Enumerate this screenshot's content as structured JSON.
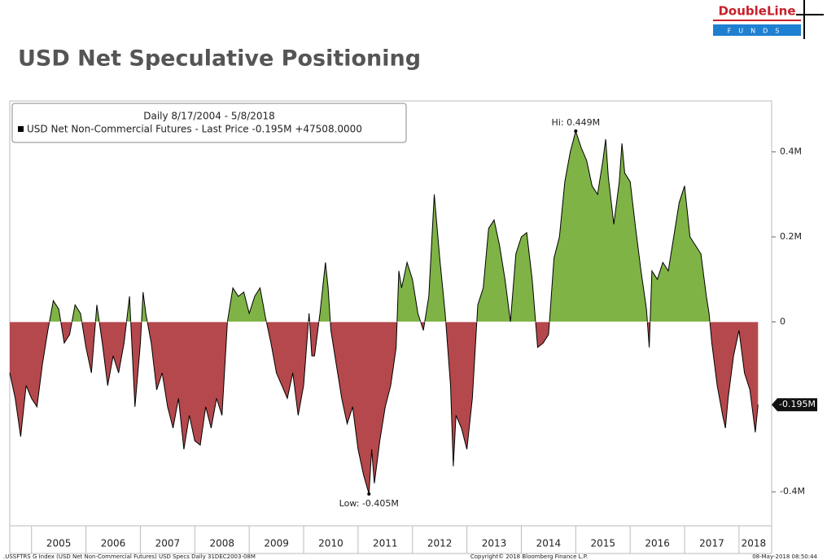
{
  "logo": {
    "name": "DoubleLine",
    "sub": "FUNDS"
  },
  "chart_data": {
    "type": "area",
    "title": "USD Net Speculative Positioning",
    "legend_period": "Daily 8/17/2004 - 5/8/2018",
    "series": [
      {
        "name": "USD Net Non-Commercial Futures - Last Price -0.195M +47508.0000",
        "color": "#000000",
        "positive_color": "#7fb346",
        "negative_color": "#b5484c",
        "x": [
          2004.6,
          2004.7,
          2004.8,
          2004.9,
          2005.0,
          2005.1,
          2005.2,
          2005.3,
          2005.4,
          2005.5,
          2005.6,
          2005.7,
          2005.8,
          2005.9,
          2006.0,
          2006.1,
          2006.2,
          2006.3,
          2006.4,
          2006.5,
          2006.6,
          2006.7,
          2006.8,
          2006.9,
          2007.0,
          2007.05,
          2007.1,
          2007.2,
          2007.3,
          2007.4,
          2007.5,
          2007.6,
          2007.7,
          2007.8,
          2007.9,
          2008.0,
          2008.1,
          2008.2,
          2008.3,
          2008.4,
          2008.5,
          2008.6,
          2008.7,
          2008.8,
          2008.9,
          2009.0,
          2009.1,
          2009.2,
          2009.3,
          2009.4,
          2009.5,
          2009.6,
          2009.7,
          2009.8,
          2009.9,
          2010.0,
          2010.1,
          2010.15,
          2010.2,
          2010.3,
          2010.4,
          2010.45,
          2010.5,
          2010.6,
          2010.7,
          2010.8,
          2010.9,
          2011.0,
          2011.1,
          2011.2,
          2011.25,
          2011.3,
          2011.4,
          2011.5,
          2011.6,
          2011.7,
          2011.75,
          2011.8,
          2011.9,
          2012.0,
          2012.1,
          2012.2,
          2012.3,
          2012.4,
          2012.5,
          2012.6,
          2012.7,
          2012.75,
          2012.8,
          2012.9,
          2013.0,
          2013.1,
          2013.2,
          2013.3,
          2013.4,
          2013.5,
          2013.6,
          2013.7,
          2013.8,
          2013.9,
          2014.0,
          2014.1,
          2014.2,
          2014.3,
          2014.4,
          2014.5,
          2014.6,
          2014.7,
          2014.8,
          2014.9,
          2015.0,
          2015.1,
          2015.2,
          2015.3,
          2015.4,
          2015.5,
          2015.55,
          2015.6,
          2015.7,
          2015.8,
          2015.85,
          2015.9,
          2016.0,
          2016.1,
          2016.2,
          2016.3,
          2016.35,
          2016.4,
          2016.5,
          2016.6,
          2016.7,
          2016.8,
          2016.9,
          2017.0,
          2017.1,
          2017.2,
          2017.3,
          2017.4,
          2017.45,
          2017.5,
          2017.6,
          2017.7,
          2017.75,
          2017.8,
          2017.9,
          2018.0,
          2018.1,
          2018.2,
          2018.3,
          2018.35
        ],
        "values": [
          -0.12,
          -0.18,
          -0.27,
          -0.15,
          -0.18,
          -0.2,
          -0.1,
          -0.02,
          0.05,
          0.03,
          -0.05,
          -0.03,
          0.04,
          0.02,
          -0.06,
          -0.12,
          0.04,
          -0.05,
          -0.15,
          -0.08,
          -0.12,
          -0.05,
          0.06,
          -0.2,
          -0.05,
          0.07,
          0.02,
          -0.05,
          -0.16,
          -0.12,
          -0.2,
          -0.25,
          -0.18,
          -0.3,
          -0.22,
          -0.28,
          -0.29,
          -0.2,
          -0.25,
          -0.18,
          -0.22,
          0.0,
          0.08,
          0.06,
          0.07,
          0.02,
          0.06,
          0.08,
          0.01,
          -0.05,
          -0.12,
          -0.15,
          -0.18,
          -0.12,
          -0.22,
          -0.15,
          0.02,
          -0.08,
          -0.08,
          0.02,
          0.14,
          0.08,
          -0.02,
          -0.1,
          -0.18,
          -0.24,
          -0.2,
          -0.3,
          -0.36,
          -0.405,
          -0.3,
          -0.38,
          -0.28,
          -0.2,
          -0.15,
          -0.06,
          0.12,
          0.08,
          0.14,
          0.1,
          0.02,
          -0.02,
          0.06,
          0.3,
          0.15,
          0.02,
          -0.15,
          -0.34,
          -0.22,
          -0.25,
          -0.3,
          -0.18,
          0.04,
          0.08,
          0.22,
          0.24,
          0.18,
          0.1,
          0.0,
          0.16,
          0.2,
          0.21,
          0.1,
          -0.06,
          -0.05,
          -0.03,
          0.15,
          0.2,
          0.33,
          0.4,
          0.449,
          0.41,
          0.38,
          0.32,
          0.3,
          0.38,
          0.43,
          0.34,
          0.23,
          0.33,
          0.42,
          0.35,
          0.33,
          0.22,
          0.12,
          0.03,
          -0.06,
          0.12,
          0.1,
          0.14,
          0.12,
          0.2,
          0.28,
          0.32,
          0.2,
          0.18,
          0.16,
          0.06,
          0.02,
          -0.05,
          -0.15,
          -0.22,
          -0.25,
          -0.18,
          -0.08,
          -0.02,
          -0.12,
          -0.16,
          -0.26,
          -0.195
        ]
      }
    ],
    "xlim": [
      2004.6,
      2018.6
    ],
    "xticks": [
      2005,
      2006,
      2007,
      2008,
      2009,
      2010,
      2011,
      2012,
      2013,
      2014,
      2015,
      2016,
      2017,
      2018
    ],
    "ylim": [
      -0.48,
      0.52
    ],
    "yticks": [
      {
        "value": -0.4,
        "label": "-0.4M"
      },
      0,
      {
        "value": 0.2,
        "label": "0.2M"
      },
      {
        "value": 0.4,
        "label": "0.4M"
      }
    ],
    "annotations": [
      {
        "text": "Hi: 0.449M",
        "x": 2015.0,
        "y": 0.449
      },
      {
        "text": "Low: -0.405M",
        "x": 2011.2,
        "y": -0.405
      }
    ],
    "last_price_label": {
      "value": -0.195,
      "label": "-0.195M"
    },
    "footer": [
      ".USSFTRS G Index (USD Net Non-Commercial Futures) USD Specs  Daily 31DEC2003-08M",
      "Copyright© 2018 Bloomberg Finance L.P.",
      "08-May-2018 08:50:44"
    ]
  }
}
